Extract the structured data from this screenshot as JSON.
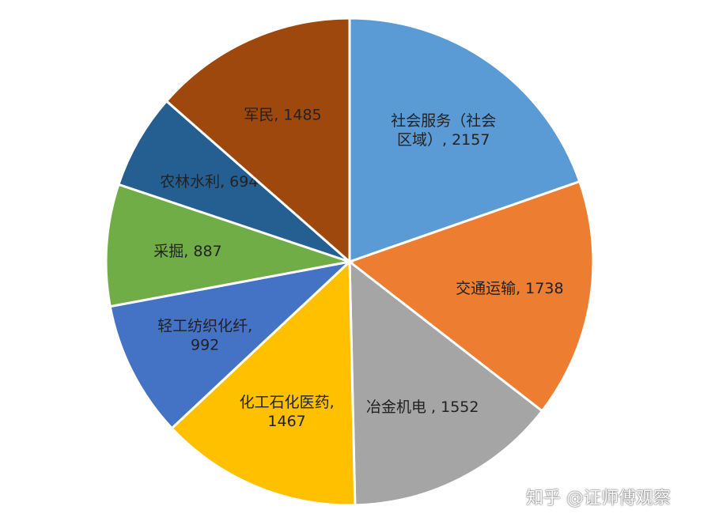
{
  "chart_data": {
    "type": "pie",
    "slices": [
      {
        "name": "社会服务（社会区域）",
        "value": 2157,
        "label_lines": [
          "社会服务（社会",
          "区域）, 2157"
        ],
        "color": "#5B9BD5"
      },
      {
        "name": "交通运输",
        "value": 1738,
        "label_lines": [
          "交通运输, 1738"
        ],
        "color": "#ED7D31"
      },
      {
        "name": "冶金机电",
        "value": 1552,
        "label_lines": [
          "冶金机电 , 1552"
        ],
        "color": "#A5A5A5"
      },
      {
        "name": "化工石化医药",
        "value": 1467,
        "label_lines": [
          "化工石化医药,",
          "1467"
        ],
        "color": "#FFC000"
      },
      {
        "name": "轻工纺织化纤",
        "value": 992,
        "label_lines": [
          "轻工纺织化纤,",
          "992"
        ],
        "color": "#4472C4"
      },
      {
        "name": "采掘",
        "value": 887,
        "label_lines": [
          "采掘, 887"
        ],
        "color": "#70AD47"
      },
      {
        "name": "农林水利",
        "value": 694,
        "label_lines": [
          "农林水利, 694"
        ],
        "color": "#255E91"
      },
      {
        "name": "军民",
        "value": 1485,
        "label_lines": [
          "军民, 1485"
        ],
        "color": "#9E480E"
      }
    ]
  },
  "watermark": "知乎 @证师傅观察"
}
